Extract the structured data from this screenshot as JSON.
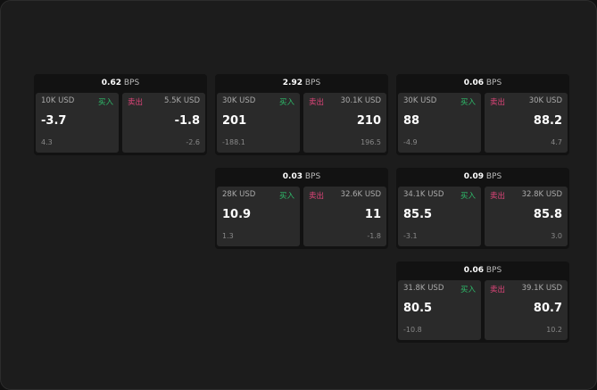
{
  "unit": "BPS",
  "buy_label": "买入",
  "sell_label": "卖出",
  "cards": [
    {
      "bps": "0.62",
      "bid_size": "10K USD",
      "bid": "-3.7",
      "bid_change": "4.3",
      "ask_size": "5.5K USD",
      "ask": "-1.8",
      "ask_change": "-2.6"
    },
    {
      "bps": "2.92",
      "bid_size": "30K USD",
      "bid": "201",
      "bid_change": "-188.1",
      "ask_size": "30.1K USD",
      "ask": "210",
      "ask_change": "196.5"
    },
    {
      "bps": "0.06",
      "bid_size": "30K USD",
      "bid": "88",
      "bid_change": "-4.9",
      "ask_size": "30K USD",
      "ask": "88.2",
      "ask_change": "4.7"
    },
    {
      "bps": "0.03",
      "bid_size": "28K USD",
      "bid": "10.9",
      "bid_change": "1.3",
      "ask_size": "32.6K USD",
      "ask": "11",
      "ask_change": "-1.8"
    },
    {
      "bps": "0.09",
      "bid_size": "34.1K USD",
      "bid": "85.5",
      "bid_change": "-3.1",
      "ask_size": "32.8K USD",
      "ask": "85.8",
      "ask_change": "3.0"
    },
    {
      "bps": "0.06",
      "bid_size": "31.8K USD",
      "bid": "80.5",
      "bid_change": "-10.8",
      "ask_size": "39.1K USD",
      "ask": "80.7",
      "ask_change": "10.2"
    }
  ]
}
